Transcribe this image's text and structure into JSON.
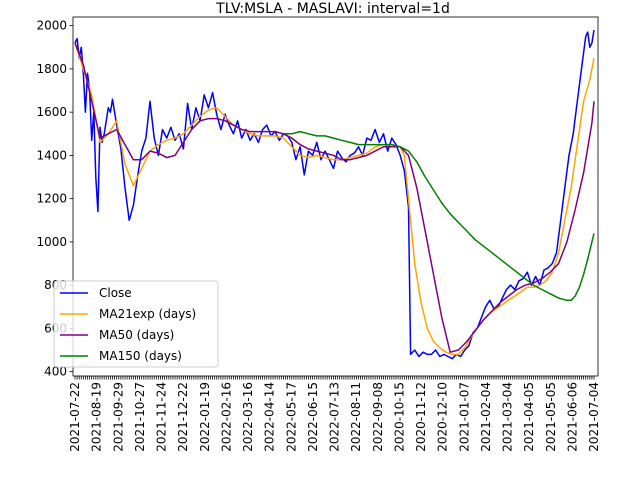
{
  "chart_data": {
    "type": "line",
    "title": "TLV:MSLA - MASLAVI: interval=1d",
    "xlabel": "",
    "ylabel": "",
    "ylim": [
      380,
      2040
    ],
    "yticks": [
      400,
      600,
      800,
      1000,
      1200,
      1400,
      1600,
      1800,
      2000
    ],
    "legend_position": "lower-left",
    "grid": false,
    "x_tick_labels": [
      "2021-07-22",
      "2021-08-19",
      "2021-09-29",
      "2021-10-27",
      "2021-11-24",
      "2021-12-22",
      "2022-01-19",
      "2022-02-16",
      "2022-03-16",
      "2022-04-14",
      "2022-05-17",
      "2022-06-15",
      "2022-07-13",
      "2022-08-11",
      "2022-09-08",
      "2020-10-15",
      "2020-11-12",
      "2020-12-10",
      "2021-01-07",
      "2021-02-04",
      "2021-03-04",
      "2021-04-05",
      "2021-05-05",
      "2021-06-06",
      "2021-07-04"
    ],
    "n_points": 250,
    "series": [
      {
        "name": "Close",
        "color": "#0000ff",
        "points": [
          [
            0,
            1920
          ],
          [
            1,
            1940
          ],
          [
            2,
            1850
          ],
          [
            3,
            1900
          ],
          [
            4,
            1780
          ],
          [
            5,
            1600
          ],
          [
            6,
            1780
          ],
          [
            7,
            1700
          ],
          [
            8,
            1470
          ],
          [
            9,
            1600
          ],
          [
            10,
            1300
          ],
          [
            11,
            1140
          ],
          [
            12,
            1530
          ],
          [
            13,
            1460
          ],
          [
            14,
            1500
          ],
          [
            15,
            1560
          ],
          [
            16,
            1620
          ],
          [
            17,
            1600
          ],
          [
            18,
            1660
          ],
          [
            19,
            1600
          ],
          [
            20,
            1540
          ],
          [
            22,
            1430
          ],
          [
            24,
            1250
          ],
          [
            26,
            1100
          ],
          [
            28,
            1170
          ],
          [
            30,
            1300
          ],
          [
            32,
            1420
          ],
          [
            34,
            1480
          ],
          [
            36,
            1650
          ],
          [
            38,
            1480
          ],
          [
            40,
            1400
          ],
          [
            42,
            1520
          ],
          [
            44,
            1480
          ],
          [
            46,
            1530
          ],
          [
            48,
            1470
          ],
          [
            50,
            1500
          ],
          [
            52,
            1430
          ],
          [
            54,
            1640
          ],
          [
            56,
            1520
          ],
          [
            58,
            1620
          ],
          [
            60,
            1560
          ],
          [
            62,
            1680
          ],
          [
            64,
            1620
          ],
          [
            66,
            1690
          ],
          [
            68,
            1590
          ],
          [
            70,
            1520
          ],
          [
            72,
            1590
          ],
          [
            74,
            1540
          ],
          [
            76,
            1500
          ],
          [
            78,
            1560
          ],
          [
            80,
            1480
          ],
          [
            82,
            1520
          ],
          [
            84,
            1470
          ],
          [
            86,
            1500
          ],
          [
            88,
            1460
          ],
          [
            90,
            1520
          ],
          [
            92,
            1540
          ],
          [
            94,
            1490
          ],
          [
            96,
            1510
          ],
          [
            98,
            1470
          ],
          [
            100,
            1500
          ],
          [
            102,
            1490
          ],
          [
            104,
            1460
          ],
          [
            106,
            1380
          ],
          [
            108,
            1440
          ],
          [
            110,
            1310
          ],
          [
            112,
            1420
          ],
          [
            114,
            1400
          ],
          [
            116,
            1460
          ],
          [
            118,
            1380
          ],
          [
            120,
            1420
          ],
          [
            122,
            1380
          ],
          [
            124,
            1340
          ],
          [
            126,
            1420
          ],
          [
            128,
            1390
          ],
          [
            130,
            1370
          ],
          [
            132,
            1400
          ],
          [
            134,
            1410
          ],
          [
            136,
            1440
          ],
          [
            138,
            1400
          ],
          [
            140,
            1480
          ],
          [
            142,
            1470
          ],
          [
            144,
            1520
          ],
          [
            146,
            1460
          ],
          [
            148,
            1500
          ],
          [
            150,
            1420
          ],
          [
            152,
            1480
          ],
          [
            154,
            1450
          ],
          [
            156,
            1400
          ],
          [
            158,
            1330
          ],
          [
            160,
            1160
          ],
          [
            161,
            480
          ],
          [
            163,
            500
          ],
          [
            165,
            470
          ],
          [
            167,
            490
          ],
          [
            169,
            480
          ],
          [
            171,
            480
          ],
          [
            173,
            500
          ],
          [
            175,
            470
          ],
          [
            177,
            480
          ],
          [
            179,
            470
          ],
          [
            181,
            460
          ],
          [
            183,
            480
          ],
          [
            185,
            470
          ],
          [
            187,
            500
          ],
          [
            189,
            520
          ],
          [
            191,
            580
          ],
          [
            193,
            600
          ],
          [
            195,
            650
          ],
          [
            197,
            700
          ],
          [
            199,
            730
          ],
          [
            201,
            690
          ],
          [
            203,
            700
          ],
          [
            205,
            740
          ],
          [
            207,
            780
          ],
          [
            209,
            800
          ],
          [
            211,
            780
          ],
          [
            213,
            820
          ],
          [
            215,
            830
          ],
          [
            217,
            860
          ],
          [
            219,
            800
          ],
          [
            221,
            840
          ],
          [
            223,
            800
          ],
          [
            225,
            870
          ],
          [
            227,
            880
          ],
          [
            229,
            900
          ],
          [
            231,
            950
          ],
          [
            233,
            1100
          ],
          [
            235,
            1250
          ],
          [
            237,
            1400
          ],
          [
            239,
            1500
          ],
          [
            241,
            1650
          ],
          [
            243,
            1800
          ],
          [
            245,
            1950
          ],
          [
            246,
            1970
          ],
          [
            247,
            1900
          ],
          [
            248,
            1920
          ],
          [
            249,
            1980
          ]
        ]
      },
      {
        "name": "MA21exp (days)",
        "color": "#ffa500",
        "points": [
          [
            0,
            1920
          ],
          [
            4,
            1800
          ],
          [
            8,
            1680
          ],
          [
            12,
            1460
          ],
          [
            16,
            1500
          ],
          [
            20,
            1560
          ],
          [
            24,
            1360
          ],
          [
            28,
            1260
          ],
          [
            32,
            1340
          ],
          [
            36,
            1420
          ],
          [
            40,
            1450
          ],
          [
            44,
            1470
          ],
          [
            48,
            1480
          ],
          [
            52,
            1500
          ],
          [
            56,
            1540
          ],
          [
            60,
            1580
          ],
          [
            64,
            1610
          ],
          [
            68,
            1620
          ],
          [
            72,
            1580
          ],
          [
            76,
            1540
          ],
          [
            80,
            1520
          ],
          [
            84,
            1500
          ],
          [
            88,
            1490
          ],
          [
            92,
            1490
          ],
          [
            96,
            1490
          ],
          [
            100,
            1480
          ],
          [
            104,
            1440
          ],
          [
            108,
            1400
          ],
          [
            112,
            1390
          ],
          [
            116,
            1400
          ],
          [
            120,
            1390
          ],
          [
            124,
            1380
          ],
          [
            128,
            1380
          ],
          [
            132,
            1390
          ],
          [
            136,
            1400
          ],
          [
            140,
            1410
          ],
          [
            144,
            1440
          ],
          [
            148,
            1450
          ],
          [
            152,
            1450
          ],
          [
            156,
            1440
          ],
          [
            158,
            1400
          ],
          [
            160,
            1200
          ],
          [
            163,
            900
          ],
          [
            166,
            720
          ],
          [
            169,
            600
          ],
          [
            172,
            540
          ],
          [
            175,
            510
          ],
          [
            178,
            490
          ],
          [
            181,
            480
          ],
          [
            184,
            480
          ],
          [
            187,
            510
          ],
          [
            190,
            560
          ],
          [
            193,
            600
          ],
          [
            196,
            640
          ],
          [
            199,
            670
          ],
          [
            202,
            690
          ],
          [
            205,
            710
          ],
          [
            208,
            730
          ],
          [
            211,
            750
          ],
          [
            214,
            770
          ],
          [
            217,
            790
          ],
          [
            220,
            790
          ],
          [
            223,
            800
          ],
          [
            226,
            820
          ],
          [
            229,
            860
          ],
          [
            232,
            950
          ],
          [
            235,
            1100
          ],
          [
            238,
            1250
          ],
          [
            241,
            1450
          ],
          [
            244,
            1650
          ],
          [
            247,
            1750
          ],
          [
            249,
            1850
          ]
        ]
      },
      {
        "name": "MA50 (days)",
        "color": "#800080",
        "points": [
          [
            0,
            1920
          ],
          [
            4,
            1820
          ],
          [
            8,
            1650
          ],
          [
            12,
            1480
          ],
          [
            16,
            1500
          ],
          [
            20,
            1520
          ],
          [
            24,
            1450
          ],
          [
            28,
            1380
          ],
          [
            32,
            1380
          ],
          [
            36,
            1420
          ],
          [
            40,
            1410
          ],
          [
            44,
            1390
          ],
          [
            48,
            1400
          ],
          [
            52,
            1460
          ],
          [
            56,
            1520
          ],
          [
            60,
            1560
          ],
          [
            64,
            1570
          ],
          [
            68,
            1570
          ],
          [
            72,
            1560
          ],
          [
            76,
            1540
          ],
          [
            80,
            1520
          ],
          [
            84,
            1510
          ],
          [
            88,
            1510
          ],
          [
            92,
            1510
          ],
          [
            96,
            1510
          ],
          [
            100,
            1500
          ],
          [
            104,
            1480
          ],
          [
            108,
            1450
          ],
          [
            112,
            1430
          ],
          [
            116,
            1420
          ],
          [
            120,
            1410
          ],
          [
            124,
            1400
          ],
          [
            128,
            1380
          ],
          [
            132,
            1380
          ],
          [
            136,
            1390
          ],
          [
            140,
            1400
          ],
          [
            144,
            1420
          ],
          [
            148,
            1440
          ],
          [
            152,
            1440
          ],
          [
            156,
            1440
          ],
          [
            160,
            1400
          ],
          [
            164,
            1250
          ],
          [
            168,
            1050
          ],
          [
            172,
            850
          ],
          [
            176,
            650
          ],
          [
            180,
            490
          ],
          [
            184,
            500
          ],
          [
            188,
            540
          ],
          [
            192,
            590
          ],
          [
            196,
            640
          ],
          [
            200,
            680
          ],
          [
            204,
            720
          ],
          [
            208,
            750
          ],
          [
            212,
            780
          ],
          [
            216,
            800
          ],
          [
            220,
            810
          ],
          [
            224,
            830
          ],
          [
            228,
            860
          ],
          [
            232,
            900
          ],
          [
            236,
            1000
          ],
          [
            240,
            1150
          ],
          [
            244,
            1320
          ],
          [
            248,
            1550
          ],
          [
            249,
            1650
          ]
        ]
      },
      {
        "name": "MA150 (days)",
        "color": "#008000",
        "points": [
          [
            100,
            1500
          ],
          [
            104,
            1500
          ],
          [
            108,
            1510
          ],
          [
            112,
            1500
          ],
          [
            116,
            1490
          ],
          [
            120,
            1490
          ],
          [
            124,
            1480
          ],
          [
            128,
            1470
          ],
          [
            132,
            1460
          ],
          [
            136,
            1450
          ],
          [
            140,
            1450
          ],
          [
            144,
            1450
          ],
          [
            148,
            1450
          ],
          [
            152,
            1450
          ],
          [
            156,
            1440
          ],
          [
            160,
            1420
          ],
          [
            164,
            1370
          ],
          [
            168,
            1300
          ],
          [
            172,
            1240
          ],
          [
            176,
            1180
          ],
          [
            180,
            1130
          ],
          [
            184,
            1090
          ],
          [
            188,
            1050
          ],
          [
            192,
            1010
          ],
          [
            196,
            980
          ],
          [
            200,
            950
          ],
          [
            204,
            920
          ],
          [
            208,
            890
          ],
          [
            212,
            860
          ],
          [
            216,
            830
          ],
          [
            220,
            800
          ],
          [
            224,
            780
          ],
          [
            228,
            760
          ],
          [
            232,
            740
          ],
          [
            236,
            730
          ],
          [
            238,
            730
          ],
          [
            240,
            750
          ],
          [
            242,
            790
          ],
          [
            244,
            850
          ],
          [
            246,
            920
          ],
          [
            248,
            1000
          ],
          [
            249,
            1040
          ]
        ]
      }
    ]
  }
}
